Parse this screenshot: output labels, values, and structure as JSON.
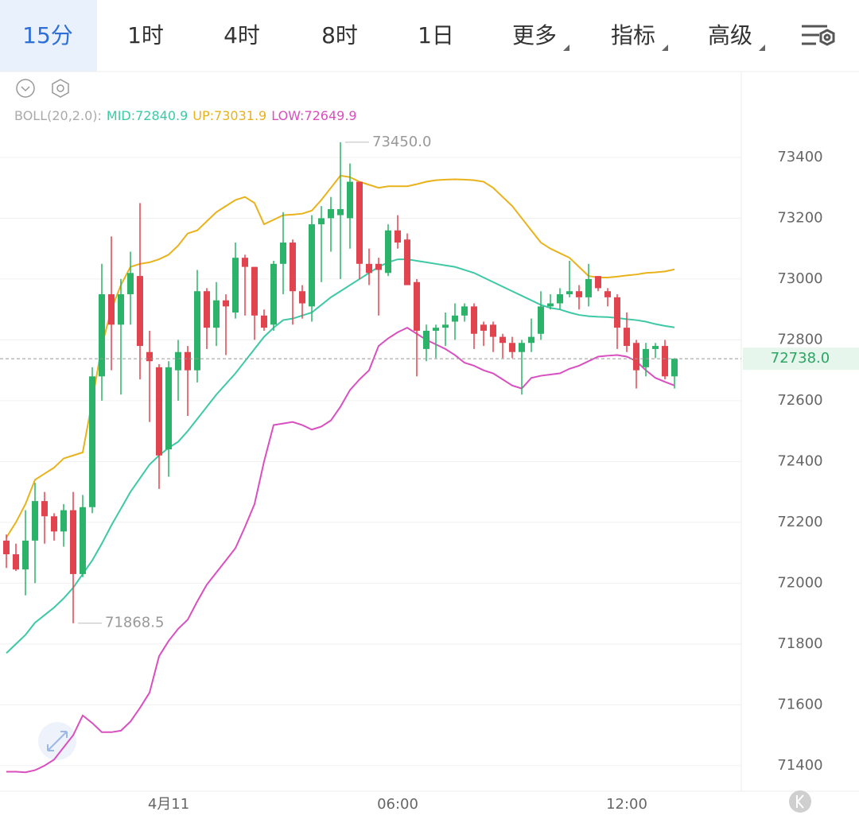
{
  "tabs": [
    "15分",
    "1时",
    "4时",
    "8时",
    "1日",
    "更多",
    "指标",
    "高级"
  ],
  "chart_data": {
    "type": "candlestick",
    "indicator_label": "BOLL(20,2.0):",
    "categories": [
      null,
      null,
      null,
      null,
      null,
      null,
      null,
      null,
      null,
      null,
      null,
      null,
      null,
      null,
      null,
      null,
      null,
      "4月11",
      null,
      null,
      null,
      null,
      null,
      null,
      null,
      null,
      null,
      null,
      null,
      null,
      null,
      null,
      null,
      null,
      null,
      null,
      null,
      null,
      null,
      null,
      null,
      "06:00",
      null,
      null,
      null,
      null,
      null,
      null,
      null,
      null,
      null,
      null,
      null,
      null,
      null,
      null,
      null,
      null,
      null,
      null,
      null,
      null,
      null,
      null,
      null,
      "12:00",
      null,
      null,
      null,
      null,
      null
    ],
    "open": [
      72140,
      72095,
      72045,
      72140,
      72270,
      72220,
      72170,
      72240,
      72030,
      72250,
      72680,
      72950,
      72850,
      72950,
      73010,
      72760,
      72710,
      72440,
      72700,
      72760,
      72700,
      72960,
      72840,
      72930,
      72890,
      73070,
      73040,
      72880,
      72850,
      73050,
      73120,
      72960,
      72910,
      73180,
      73200,
      73210,
      73200,
      73320,
      73050,
      73050,
      73020,
      73160,
      73130,
      72990,
      72770,
      72830,
      72840,
      72860,
      72880,
      72910,
      72850,
      72850,
      72810,
      72790,
      72760,
      72790,
      72820,
      72910,
      72920,
      72950,
      72960,
      72940,
      73010,
      72960,
      72940,
      72840,
      72790,
      72710,
      72770,
      72780,
      72680
    ],
    "high": [
      72160,
      72130,
      72240,
      72330,
      72300,
      72230,
      72260,
      72300,
      72290,
      72710,
      73050,
      73140,
      73000,
      73090,
      73250,
      72830,
      72720,
      72730,
      72800,
      72780,
      73030,
      72970,
      72990,
      72950,
      73120,
      73080,
      73040,
      72900,
      73060,
      73220,
      73130,
      72980,
      73210,
      73240,
      73270,
      73450,
      73380,
      73320,
      73100,
      73070,
      73180,
      73210,
      73150,
      73000,
      72850,
      72850,
      72890,
      72920,
      72920,
      72920,
      72860,
      72860,
      72820,
      72810,
      72800,
      72870,
      72960,
      72950,
      72970,
      73060,
      72980,
      73050,
      73010,
      72970,
      72950,
      72890,
      72800,
      72790,
      72790,
      72800,
      72740
    ],
    "low": [
      72050,
      72040,
      71960,
      72000,
      72130,
      72140,
      72120,
      71868.5,
      72020,
      72230,
      72600,
      72700,
      72620,
      72850,
      72670,
      72530,
      72310,
      72350,
      72600,
      72550,
      72660,
      72770,
      72780,
      72750,
      72870,
      72880,
      72800,
      72830,
      72830,
      72950,
      72850,
      72870,
      72860,
      72990,
      73090,
      73000,
      73100,
      73000,
      72980,
      72880,
      73010,
      73100,
      72980,
      72680,
      72730,
      72740,
      72780,
      72800,
      72860,
      72770,
      72780,
      72760,
      72740,
      72740,
      72620,
      72760,
      72800,
      72900,
      72900,
      72940,
      72900,
      72910,
      72960,
      72910,
      72770,
      72760,
      72640,
      72680,
      72740,
      72670,
      72640
    ],
    "close": [
      72095,
      72045,
      72140,
      72270,
      72220,
      72170,
      72240,
      72030,
      72250,
      72680,
      72950,
      72850,
      72950,
      73020,
      72780,
      72730,
      72420,
      72710,
      72760,
      72700,
      72960,
      72840,
      72930,
      72910,
      73070,
      73040,
      72880,
      72840,
      73050,
      73120,
      72960,
      72920,
      73180,
      73200,
      73230,
      73230,
      73320,
      73050,
      73020,
      73030,
      73160,
      73120,
      72980,
      72830,
      72830,
      72840,
      72850,
      72880,
      72910,
      72820,
      72830,
      72810,
      72790,
      72760,
      72790,
      72810,
      72910,
      72920,
      72950,
      72960,
      72940,
      73000,
      72970,
      72940,
      72840,
      72780,
      72700,
      72770,
      72780,
      72680,
      72738
    ],
    "series": [
      {
        "name": "MID:",
        "color": "#3dc9a5",
        "values": [
          71770,
          71800,
          71830,
          71870,
          71895,
          71920,
          71950,
          71985,
          72030,
          72075,
          72130,
          72190,
          72245,
          72300,
          72345,
          72390,
          72420,
          72445,
          72465,
          72500,
          72540,
          72580,
          72620,
          72655,
          72690,
          72730,
          72770,
          72810,
          72840,
          72865,
          72870,
          72880,
          72890,
          72915,
          72940,
          72960,
          72980,
          73000,
          73020,
          73040,
          73055,
          73065,
          73065,
          73060,
          73055,
          73050,
          73045,
          73040,
          73030,
          73020,
          73005,
          72990,
          72975,
          72960,
          72945,
          72930,
          72915,
          72905,
          72900,
          72890,
          72882,
          72878,
          72876,
          72875,
          72872,
          72868,
          72865,
          72860,
          72852,
          72846,
          72840.9
        ]
      },
      {
        "name": "UP:",
        "color": "#e9b21a",
        "values": [
          72150,
          72200,
          72260,
          72340,
          72360,
          72380,
          72410,
          72420,
          72430,
          72600,
          72780,
          72900,
          72980,
          73040,
          73050,
          73055,
          73065,
          73080,
          73110,
          73150,
          73160,
          73190,
          73220,
          73240,
          73260,
          73270,
          73250,
          73180,
          73195,
          73210,
          73212,
          73215,
          73225,
          73260,
          73300,
          73340,
          73335,
          73320,
          73310,
          73300,
          73305,
          73305,
          73305,
          73312,
          73320,
          73325,
          73327,
          73328,
          73327,
          73325,
          73320,
          73300,
          73270,
          73240,
          73200,
          73160,
          73120,
          73100,
          73085,
          73070,
          73040,
          73010,
          73005,
          73005,
          73008,
          73012,
          73015,
          73020,
          73022,
          73025,
          73031.9
        ]
      },
      {
        "name": "LOW:",
        "color": "#d94fbf",
        "values": [
          71380,
          71380,
          71378,
          71385,
          71400,
          71420,
          71460,
          71500,
          71565,
          71540,
          71510,
          71510,
          71515,
          71545,
          71590,
          71640,
          71760,
          71810,
          71850,
          71880,
          71940,
          71995,
          72035,
          72075,
          72115,
          72185,
          72260,
          72400,
          72520,
          72525,
          72530,
          72520,
          72505,
          72515,
          72535,
          72580,
          72635,
          72670,
          72700,
          72780,
          72805,
          72825,
          72840,
          72820,
          72800,
          72785,
          72770,
          72750,
          72725,
          72715,
          72700,
          72690,
          72670,
          72650,
          72640,
          72675,
          72682,
          72686,
          72690,
          72705,
          72715,
          72730,
          72745,
          72748,
          72750,
          72745,
          72730,
          72700,
          72675,
          72662,
          72649.9
        ]
      }
    ],
    "up_color": "#2bb36a",
    "down_color": "#e2444f",
    "annotations": [
      {
        "index": 35,
        "value": 73450,
        "label": "73450.0"
      },
      {
        "index": 7,
        "value": 71868.5,
        "label": "71868.5"
      }
    ],
    "last_price": {
      "value": 72738,
      "label": "72738.0"
    },
    "ylim": [
      71316,
      73677
    ],
    "yticks": [
      71400,
      71600,
      71800,
      72000,
      72200,
      72400,
      72600,
      72800,
      73000,
      73200,
      73400
    ],
    "grid": true
  }
}
